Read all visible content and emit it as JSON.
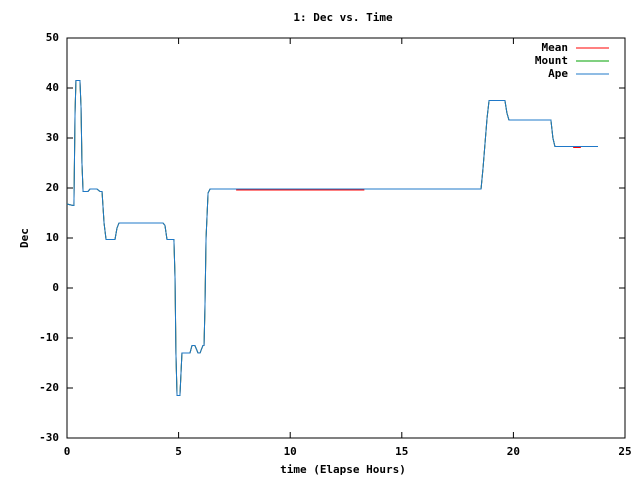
{
  "chart_data": {
    "type": "line",
    "title": "1: Dec vs. Time",
    "x_label": "time (Elapse Hours)",
    "y_label": "Dec",
    "xlim": [
      0,
      25
    ],
    "xticks": [
      0,
      5,
      10,
      15,
      20,
      25
    ],
    "ylim": [
      -30,
      50
    ],
    "yticks": [
      -30,
      -20,
      -10,
      0,
      10,
      20,
      30,
      40,
      50
    ],
    "legend": "top-right",
    "grid": false,
    "series": [
      {
        "name": "Mean",
        "color": "#ff0000",
        "x": [
          0,
          0.27,
          0.31,
          0.36,
          0.4,
          0.58,
          0.63,
          0.67,
          0.72,
          0.94,
          1.03,
          1.34,
          1.48,
          1.57,
          1.66,
          1.75,
          2.15,
          2.24,
          2.33,
          4.3,
          4.39,
          4.48,
          4.79,
          4.84,
          4.88,
          4.93,
          5.06,
          5.15,
          5.51,
          5.6,
          5.73,
          5.87,
          5.96,
          6.09,
          6.14,
          6.18,
          6.23,
          6.32,
          6.41,
          7.6,
          7.6,
          13.3,
          13.3,
          18.55,
          18.64,
          18.73,
          18.82,
          18.91,
          19.62,
          19.71,
          19.8,
          21.68,
          21.77,
          21.86,
          22.7,
          22.7,
          23.0,
          23.0,
          23.79
        ],
        "values": [
          16.8,
          16.5,
          16.5,
          35,
          41.5,
          41.5,
          36,
          25,
          19.3,
          19.3,
          19.8,
          19.8,
          19.3,
          19.3,
          13,
          9.7,
          9.7,
          12,
          13,
          13,
          12.5,
          9.7,
          9.7,
          2,
          -13,
          -21.5,
          -21.5,
          -13,
          -13,
          -11.5,
          -11.5,
          -13,
          -13,
          -11.5,
          -11.5,
          -4,
          10,
          19,
          19.8,
          19.8,
          19.6,
          19.6,
          19.8,
          19.8,
          24,
          29,
          34,
          37.5,
          37.5,
          35,
          33.6,
          33.6,
          30,
          28.3,
          28.3,
          28.1,
          28.1,
          28.3,
          28.3
        ]
      },
      {
        "name": "Mount",
        "color": "#00a000",
        "x": [
          0,
          0.27,
          0.31,
          0.36,
          0.4,
          0.58,
          0.63,
          0.67,
          0.72,
          0.94,
          1.03,
          1.34,
          1.48,
          1.57,
          1.66,
          1.75,
          2.15,
          2.24,
          2.33,
          4.3,
          4.39,
          4.48,
          4.79,
          4.84,
          4.88,
          4.93,
          5.06,
          5.15,
          5.51,
          5.6,
          5.73,
          5.87,
          5.96,
          6.09,
          6.14,
          6.18,
          6.23,
          6.32,
          6.41,
          18.55,
          18.64,
          18.73,
          18.82,
          18.91,
          19.62,
          19.71,
          19.8,
          21.68,
          21.77,
          21.86,
          23.79
        ],
        "values": [
          16.8,
          16.5,
          16.5,
          35,
          41.5,
          41.5,
          36,
          25,
          19.3,
          19.3,
          19.8,
          19.8,
          19.3,
          19.3,
          13,
          9.7,
          9.7,
          12,
          13,
          13,
          12.5,
          9.7,
          9.7,
          2,
          -13,
          -21.5,
          -21.5,
          -13,
          -13,
          -11.5,
          -11.5,
          -13,
          -13,
          -11.5,
          -11.5,
          -4,
          10,
          19,
          19.8,
          19.8,
          24,
          29,
          34,
          37.5,
          37.5,
          35,
          33.6,
          33.6,
          30,
          28.3,
          28.3
        ]
      },
      {
        "name": "Ape",
        "color": "#1f78c8",
        "x": [
          0,
          0.27,
          0.31,
          0.36,
          0.4,
          0.58,
          0.63,
          0.67,
          0.72,
          0.94,
          1.03,
          1.34,
          1.48,
          1.57,
          1.66,
          1.75,
          2.15,
          2.24,
          2.33,
          4.3,
          4.39,
          4.48,
          4.79,
          4.84,
          4.88,
          4.93,
          5.06,
          5.15,
          5.51,
          5.6,
          5.73,
          5.87,
          5.96,
          6.09,
          6.14,
          6.18,
          6.23,
          6.32,
          6.41,
          18.55,
          18.64,
          18.73,
          18.82,
          18.91,
          19.62,
          19.71,
          19.8,
          21.68,
          21.77,
          21.86,
          23.79
        ],
        "values": [
          16.8,
          16.5,
          16.5,
          35,
          41.5,
          41.5,
          36,
          25,
          19.3,
          19.3,
          19.8,
          19.8,
          19.3,
          19.3,
          13,
          9.7,
          9.7,
          12,
          13,
          13,
          12.5,
          9.7,
          9.7,
          2,
          -13,
          -21.5,
          -21.5,
          -13,
          -13,
          -11.5,
          -11.5,
          -13,
          -13,
          -11.5,
          -11.5,
          -4,
          10,
          19,
          19.8,
          19.8,
          24,
          29,
          34,
          37.5,
          37.5,
          35,
          33.6,
          33.6,
          30,
          28.3,
          28.3
        ]
      }
    ]
  }
}
